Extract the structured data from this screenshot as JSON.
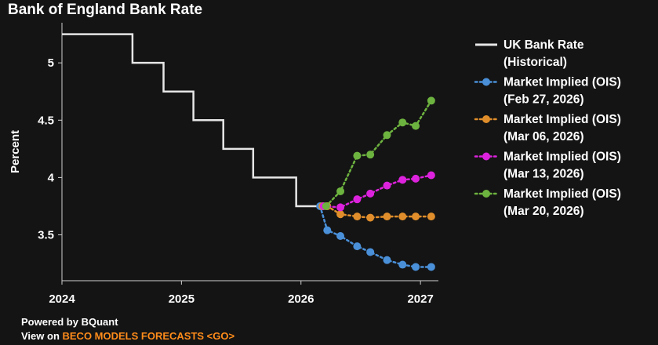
{
  "chart_data": {
    "type": "line",
    "title": "Bank of England Bank Rate",
    "xlabel": "",
    "ylabel": "Percent",
    "xlim": [
      2024.0,
      2027.15
    ],
    "ylim": [
      3.1,
      5.35
    ],
    "x_ticks": [
      2024,
      2025,
      2026,
      2027
    ],
    "x_tick_labels": [
      "2024",
      "2025",
      "2026",
      "2027"
    ],
    "y_ticks": [
      3.5,
      4,
      4.5,
      5
    ],
    "y_tick_labels": [
      "3.5",
      "4",
      "4.5",
      "5"
    ],
    "grid": false,
    "legend_position": "right",
    "series": [
      {
        "name": "UK Bank Rate (Historical)",
        "legend_lines": [
          "UK Bank Rate",
          "(Historical)"
        ],
        "color": "#e6e6e6",
        "style": "step",
        "x": [
          2024.0,
          2024.59,
          2024.85,
          2025.1,
          2025.35,
          2025.6,
          2025.96,
          2026.19
        ],
        "y": [
          5.25,
          5.0,
          4.75,
          4.5,
          4.25,
          4.0,
          3.75,
          3.75
        ]
      },
      {
        "name": "Market Implied (OIS) (Feb 27, 2026)",
        "legend_lines": [
          "Market Implied (OIS)",
          "(Feb 27, 2026)"
        ],
        "color": "#4a90d9",
        "style": "dotted-markers",
        "x": [
          2026.16,
          2026.22,
          2026.33,
          2026.47,
          2026.58,
          2026.72,
          2026.85,
          2026.96,
          2027.09
        ],
        "y": [
          3.75,
          3.54,
          3.49,
          3.4,
          3.35,
          3.28,
          3.24,
          3.22,
          3.22
        ]
      },
      {
        "name": "Market Implied (OIS) (Mar 06, 2026)",
        "legend_lines": [
          "Market Implied (OIS)",
          "(Mar 06, 2026)"
        ],
        "color": "#e08e2b",
        "style": "dotted-markers",
        "x": [
          2026.18,
          2026.22,
          2026.33,
          2026.47,
          2026.58,
          2026.72,
          2026.85,
          2026.96,
          2027.09
        ],
        "y": [
          3.75,
          3.75,
          3.68,
          3.66,
          3.65,
          3.66,
          3.66,
          3.66,
          3.66
        ]
      },
      {
        "name": "Market Implied (OIS) (Mar 13, 2026)",
        "legend_lines": [
          "Market Implied (OIS)",
          "(Mar 13, 2026)"
        ],
        "color": "#dd22dd",
        "style": "dotted-markers",
        "x": [
          2026.19,
          2026.33,
          2026.47,
          2026.58,
          2026.72,
          2026.85,
          2026.96,
          2027.09
        ],
        "y": [
          3.75,
          3.74,
          3.81,
          3.86,
          3.93,
          3.98,
          3.99,
          4.02
        ]
      },
      {
        "name": "Market Implied (OIS) (Mar 20, 2026)",
        "legend_lines": [
          "Market Implied (OIS)",
          "(Mar 20, 2026)"
        ],
        "color": "#6db33f",
        "style": "dotted-markers",
        "x": [
          2026.21,
          2026.33,
          2026.47,
          2026.58,
          2026.72,
          2026.85,
          2026.96,
          2027.09
        ],
        "y": [
          3.75,
          3.88,
          4.19,
          4.2,
          4.37,
          4.48,
          4.45,
          4.67
        ]
      }
    ]
  },
  "footer": {
    "powered_by": "Powered by BQuant",
    "view_on": "View on ",
    "link_text": "BECO MODELS FORECASTS <GO>"
  }
}
